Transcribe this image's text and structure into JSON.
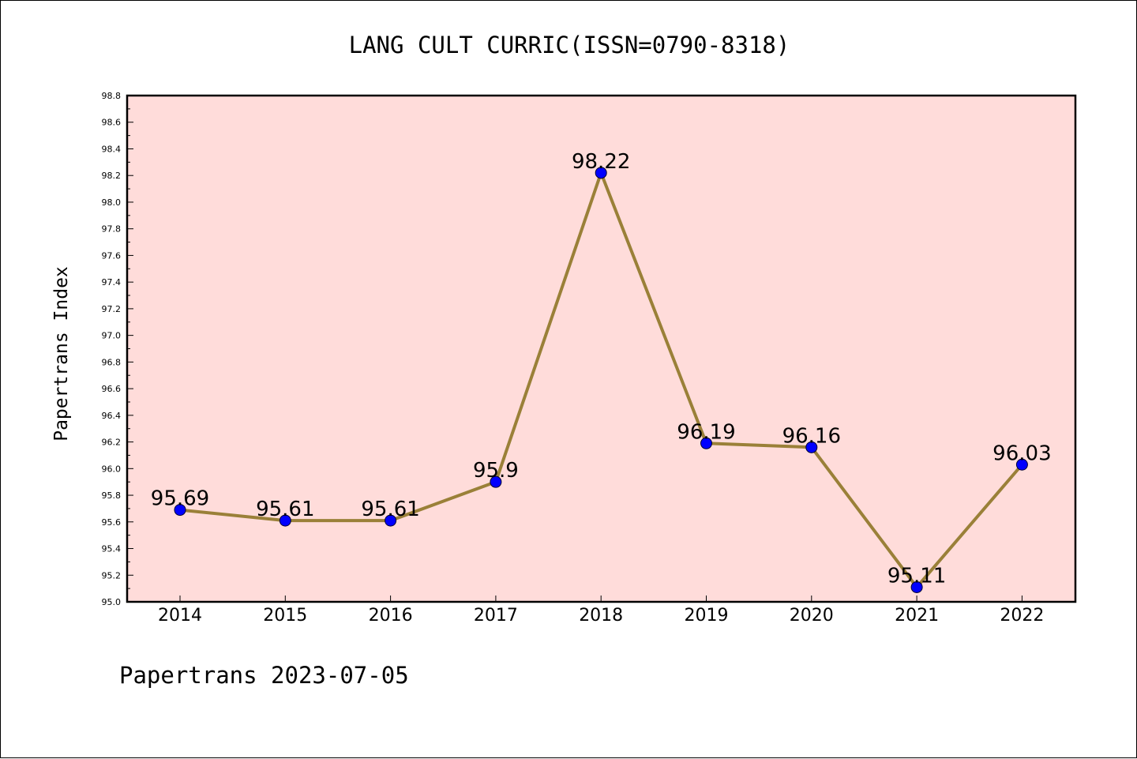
{
  "chart_data": {
    "type": "line",
    "title": "LANG CULT CURRIC(ISSN=0790-8318)",
    "xlabel": "",
    "ylabel": "Papertrans Index",
    "footer": "Papertrans 2023-07-05",
    "categories": [
      "2014",
      "2015",
      "2016",
      "2017",
      "2018",
      "2019",
      "2020",
      "2021",
      "2022"
    ],
    "series": [
      {
        "values": [
          95.69,
          95.61,
          95.61,
          95.9,
          98.22,
          96.19,
          96.16,
          95.11,
          96.03
        ],
        "labels": [
          "95.69",
          "95.61",
          "95.61",
          "95.9",
          "98.22",
          "96.19",
          "96.16",
          "95.11",
          "96.03"
        ]
      }
    ],
    "ylim": [
      95.0,
      98.8
    ],
    "yticks": [
      "95.0",
      "95.2",
      "95.4",
      "95.6",
      "95.8",
      "96.0",
      "96.2",
      "96.4",
      "96.6",
      "96.8",
      "97.0",
      "97.2",
      "97.4",
      "97.6",
      "97.8",
      "98.0",
      "98.2",
      "98.4",
      "98.6",
      "98.8"
    ],
    "grid": false,
    "colors": {
      "plot_background": "#ffdcda",
      "line": "#9a8038",
      "marker": "#0000ff"
    }
  }
}
